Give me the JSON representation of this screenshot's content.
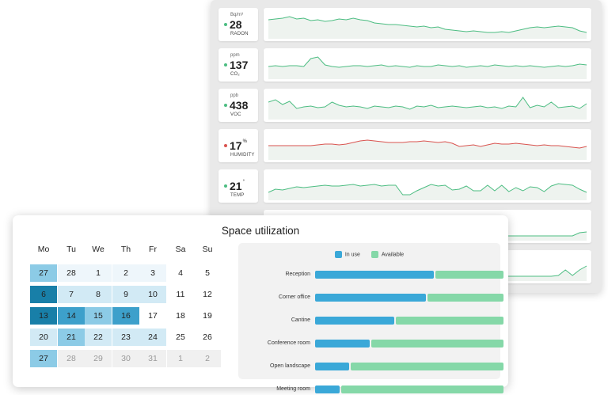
{
  "sensors": [
    {
      "unit": "Bq/m³",
      "value": "28",
      "sup": "",
      "name": "RADON",
      "status_color": "#4cbd82",
      "line": [
        12,
        11,
        10,
        8,
        11,
        10,
        13,
        12,
        14,
        13,
        11,
        12,
        10,
        12,
        13,
        16,
        17,
        18,
        18,
        19,
        20,
        21,
        20,
        22,
        21,
        24,
        25,
        26,
        27,
        26,
        27,
        28,
        28,
        27,
        28,
        26,
        24,
        22,
        21,
        22,
        21,
        20,
        21,
        22,
        26,
        28
      ]
    },
    {
      "unit": "ppm",
      "value": "137",
      "sup": "",
      "name": "CO₂",
      "status_color": "#4cbd82",
      "line": [
        20,
        19,
        20,
        19,
        19,
        20,
        10,
        8,
        18,
        20,
        21,
        20,
        19,
        19,
        20,
        19,
        18,
        20,
        19,
        20,
        21,
        19,
        20,
        20,
        18,
        19,
        20,
        19,
        21,
        20,
        19,
        20,
        18,
        19,
        20,
        19,
        20,
        19,
        20,
        21,
        20,
        19,
        20,
        19,
        17,
        18
      ]
    },
    {
      "unit": "ppb",
      "value": "438",
      "sup": "",
      "name": "VOC",
      "status_color": "#4cbd82",
      "line": [
        14,
        11,
        17,
        13,
        22,
        20,
        19,
        21,
        20,
        14,
        18,
        20,
        19,
        20,
        22,
        19,
        20,
        21,
        19,
        20,
        23,
        19,
        20,
        18,
        21,
        20,
        19,
        20,
        21,
        20,
        19,
        21,
        20,
        22,
        19,
        20,
        8,
        21,
        18,
        20,
        14,
        21,
        20,
        19,
        22,
        16
      ]
    },
    {
      "unit": "",
      "value": "17",
      "sup": "%",
      "name": "HUMIDITY",
      "status_color": "#d9534f",
      "line": [
        18,
        18,
        18,
        18,
        18,
        18,
        18,
        17,
        16,
        16,
        17,
        16,
        14,
        12,
        11,
        12,
        13,
        14,
        14,
        14,
        13,
        13,
        12,
        13,
        14,
        13,
        15,
        19,
        18,
        17,
        19,
        17,
        15,
        16,
        16,
        15,
        16,
        17,
        18,
        17,
        18,
        18,
        19,
        20,
        21,
        19
      ]
    },
    {
      "unit": "",
      "value": "21",
      "sup": "°",
      "name": "TEMP",
      "status_color": "#4cbd82",
      "line": [
        26,
        22,
        23,
        21,
        19,
        20,
        19,
        18,
        17,
        18,
        18,
        17,
        16,
        18,
        17,
        16,
        18,
        17,
        17,
        29,
        29,
        24,
        20,
        16,
        18,
        17,
        23,
        22,
        18,
        24,
        24,
        17,
        24,
        17,
        25,
        20,
        24,
        19,
        20,
        25,
        18,
        15,
        16,
        17,
        22,
        26
      ]
    },
    {
      "unit": "",
      "value": "",
      "sup": "",
      "name": "",
      "status_color": "#4cbd82",
      "line": [
        30,
        30,
        30,
        30,
        30,
        30,
        30,
        30,
        30,
        30,
        30,
        30,
        30,
        30,
        30,
        30,
        30,
        30,
        30,
        30,
        30,
        30,
        30,
        30,
        30,
        30,
        30,
        30,
        30,
        30,
        30,
        30,
        30,
        30,
        30,
        30,
        30,
        30,
        30,
        30,
        30,
        30,
        30,
        30,
        26,
        25
      ]
    },
    {
      "unit": "",
      "value": "",
      "sup": "",
      "name": "",
      "status_color": "#4cbd82",
      "line": [
        30,
        30,
        30,
        30,
        30,
        30,
        30,
        30,
        30,
        30,
        30,
        30,
        30,
        30,
        30,
        30,
        30,
        30,
        30,
        30,
        30,
        30,
        30,
        30,
        30,
        30,
        30,
        30,
        30,
        30,
        30,
        30,
        30,
        30,
        30,
        30,
        30,
        30,
        30,
        30,
        30,
        29,
        22,
        29,
        22,
        17
      ]
    }
  ],
  "utilization": {
    "title": "Space utilization",
    "weekdays": [
      "Mo",
      "Tu",
      "We",
      "Th",
      "Fr",
      "Sa",
      "Su"
    ],
    "calendar": [
      [
        {
          "d": "27",
          "lvl": 2
        },
        {
          "d": "28",
          "lvl": 0
        },
        {
          "d": "1",
          "lvl": 0
        },
        {
          "d": "2",
          "lvl": 0
        },
        {
          "d": "3",
          "lvl": 0
        },
        {
          "d": "4",
          "lvl": -1
        },
        {
          "d": "5",
          "lvl": -1
        }
      ],
      [
        {
          "d": "6",
          "lvl": 4
        },
        {
          "d": "7",
          "lvl": 1
        },
        {
          "d": "8",
          "lvl": 1
        },
        {
          "d": "9",
          "lvl": 1
        },
        {
          "d": "10",
          "lvl": 1
        },
        {
          "d": "11",
          "lvl": -1
        },
        {
          "d": "12",
          "lvl": -1
        }
      ],
      [
        {
          "d": "13",
          "lvl": 4
        },
        {
          "d": "14",
          "lvl": 3
        },
        {
          "d": "15",
          "lvl": 2
        },
        {
          "d": "16",
          "lvl": 3
        },
        {
          "d": "17",
          "lvl": -1
        },
        {
          "d": "18",
          "lvl": -1
        },
        {
          "d": "19",
          "lvl": -1
        }
      ],
      [
        {
          "d": "20",
          "lvl": 1
        },
        {
          "d": "21",
          "lvl": 2
        },
        {
          "d": "22",
          "lvl": 1
        },
        {
          "d": "23",
          "lvl": 1
        },
        {
          "d": "24",
          "lvl": 1
        },
        {
          "d": "25",
          "lvl": -1
        },
        {
          "d": "26",
          "lvl": -1
        }
      ],
      [
        {
          "d": "27",
          "lvl": 2
        },
        {
          "d": "28",
          "lvl": -2
        },
        {
          "d": "29",
          "lvl": -2
        },
        {
          "d": "30",
          "lvl": -2
        },
        {
          "d": "31",
          "lvl": -2
        },
        {
          "d": "1",
          "lvl": -2
        },
        {
          "d": "2",
          "lvl": -2
        }
      ]
    ],
    "legend": {
      "in_use": "In use",
      "available": "Available"
    },
    "colors": {
      "in_use": "#3aa8d8",
      "available": "#85d8a8"
    },
    "rooms": [
      {
        "label": "Reception",
        "in_use_fraction": 0.63
      },
      {
        "label": "Corner office",
        "in_use_fraction": 0.59
      },
      {
        "label": "Cantine",
        "in_use_fraction": 0.42
      },
      {
        "label": "Conference room",
        "in_use_fraction": 0.29
      },
      {
        "label": "Open landscape",
        "in_use_fraction": 0.18
      },
      {
        "label": "Meeting room",
        "in_use_fraction": 0.13
      }
    ]
  }
}
